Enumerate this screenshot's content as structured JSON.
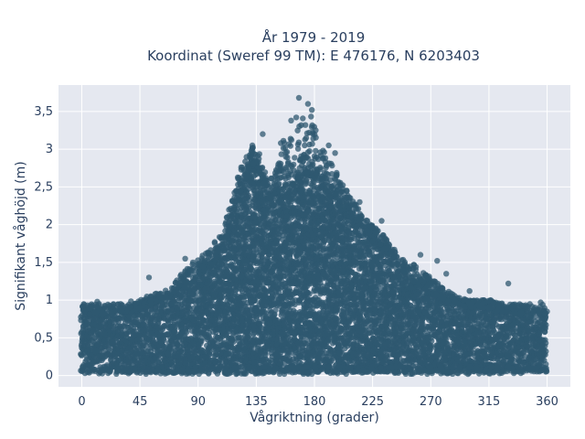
{
  "chart_data": {
    "type": "scatter",
    "title_line1": "År 1979 - 2019",
    "title_line2": "Koordinat (Sweref 99 TM): E 476176, N 6203403",
    "xlabel": "Vågriktning (grader)",
    "ylabel": "Signifikant våghöjd (m)",
    "xlim": [
      -18,
      378
    ],
    "ylim": [
      -0.15,
      3.85
    ],
    "xticks": [
      0,
      45,
      90,
      135,
      180,
      225,
      270,
      315,
      360
    ],
    "xtick_labels": [
      "0",
      "45",
      "90",
      "135",
      "180",
      "225",
      "270",
      "315",
      "360"
    ],
    "yticks": [
      0,
      0.5,
      1,
      1.5,
      2,
      2.5,
      3,
      3.5
    ],
    "ytick_labels": [
      "0",
      "0,5",
      "1",
      "1,5",
      "2",
      "2,5",
      "3",
      "3,5"
    ],
    "grid": true,
    "marker_color": "#2f5870",
    "envelope": {
      "x": [
        0,
        10,
        20,
        30,
        40,
        50,
        60,
        70,
        80,
        90,
        100,
        110,
        115,
        120,
        125,
        130,
        135,
        140,
        145,
        150,
        155,
        160,
        165,
        170,
        175,
        180,
        185,
        190,
        195,
        200,
        205,
        210,
        215,
        220,
        225,
        230,
        240,
        250,
        260,
        270,
        280,
        290,
        300,
        310,
        320,
        330,
        340,
        350,
        360
      ],
      "dense_max": [
        0.8,
        0.8,
        0.8,
        0.85,
        0.85,
        0.9,
        1.0,
        1.05,
        1.15,
        1.3,
        1.45,
        1.7,
        2.0,
        2.3,
        2.55,
        2.75,
        2.8,
        2.6,
        2.35,
        2.4,
        2.5,
        2.55,
        2.6,
        2.65,
        2.7,
        2.7,
        2.6,
        2.5,
        2.4,
        2.3,
        2.2,
        2.1,
        2.0,
        1.9,
        1.85,
        1.75,
        1.55,
        1.35,
        1.2,
        1.1,
        1.0,
        0.95,
        0.9,
        0.9,
        0.85,
        0.85,
        0.8,
        0.8,
        0.8
      ],
      "outer_max": [
        0.95,
        0.95,
        0.95,
        0.95,
        1.0,
        1.05,
        1.1,
        1.2,
        1.4,
        1.55,
        1.7,
        1.95,
        2.3,
        2.6,
        2.85,
        3.05,
        3.0,
        2.9,
        2.6,
        2.7,
        3.1,
        3.2,
        3.4,
        3.55,
        3.65,
        3.35,
        3.05,
        2.95,
        2.8,
        2.6,
        2.45,
        2.35,
        2.25,
        2.1,
        2.0,
        1.95,
        1.7,
        1.55,
        1.45,
        1.3,
        1.15,
        1.05,
        1.0,
        1.0,
        1.0,
        0.95,
        0.95,
        0.95,
        0.95
      ]
    },
    "outliers": [
      {
        "x": 168,
        "y": 3.68
      },
      {
        "x": 175,
        "y": 3.6
      },
      {
        "x": 178,
        "y": 3.52
      },
      {
        "x": 162,
        "y": 3.38
      },
      {
        "x": 173,
        "y": 3.32
      },
      {
        "x": 181,
        "y": 3.25
      },
      {
        "x": 140,
        "y": 3.2
      },
      {
        "x": 132,
        "y": 3.05
      },
      {
        "x": 154,
        "y": 3.08
      },
      {
        "x": 191,
        "y": 3.05
      },
      {
        "x": 196,
        "y": 2.95
      },
      {
        "x": 52,
        "y": 1.3
      },
      {
        "x": 80,
        "y": 1.55
      },
      {
        "x": 86,
        "y": 1.5
      },
      {
        "x": 330,
        "y": 1.22
      },
      {
        "x": 275,
        "y": 1.52
      },
      {
        "x": 282,
        "y": 1.35
      },
      {
        "x": 215,
        "y": 2.3
      },
      {
        "x": 232,
        "y": 2.05
      },
      {
        "x": 262,
        "y": 1.6
      },
      {
        "x": 300,
        "y": 1.12
      },
      {
        "x": 12,
        "y": 0.98
      },
      {
        "x": 30,
        "y": 0.95
      },
      {
        "x": 355,
        "y": 0.97
      }
    ]
  }
}
